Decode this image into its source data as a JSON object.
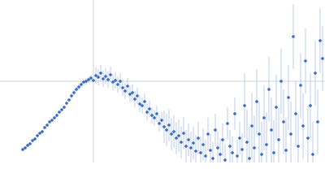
{
  "chart_data": {
    "type": "scatter",
    "x": [
      28,
      31,
      34,
      37,
      40,
      43,
      46,
      49,
      52,
      55,
      58,
      61,
      64,
      67,
      70,
      73,
      76,
      79,
      82,
      85,
      88,
      91,
      94,
      97,
      100,
      103,
      106,
      109,
      112,
      115,
      118,
      121,
      124,
      127,
      130,
      133,
      136,
      139,
      142,
      145,
      148,
      151,
      154,
      157,
      160,
      163,
      166,
      169,
      172,
      175,
      178,
      181,
      184,
      187,
      190,
      193,
      196,
      199,
      202,
      205,
      208,
      211,
      214,
      217,
      220,
      223,
      226,
      229,
      232,
      235,
      238,
      241,
      244,
      247,
      250,
      253,
      256,
      259,
      262,
      265,
      268,
      271,
      274,
      277,
      280,
      283,
      286,
      289,
      292,
      295,
      298,
      301,
      304,
      307,
      310,
      313,
      316,
      319,
      322,
      325,
      328,
      331,
      334,
      337,
      340,
      343,
      346,
      349,
      352,
      355,
      358,
      361,
      364,
      367,
      370,
      373,
      376,
      379,
      382,
      385,
      388,
      391,
      394,
      397
    ],
    "values": [
      16,
      18,
      21,
      23,
      27,
      29,
      33,
      36,
      38,
      43,
      46,
      50,
      52,
      55,
      58,
      62,
      65,
      68,
      73,
      77,
      82,
      86,
      90,
      93,
      96,
      99,
      100,
      102,
      104,
      101,
      107,
      105,
      110,
      103,
      106,
      102,
      108,
      99,
      101,
      96,
      100,
      92,
      88,
      94,
      84,
      86,
      78,
      82,
      72,
      70,
      75,
      62,
      66,
      58,
      55,
      60,
      48,
      52,
      44,
      40,
      46,
      35,
      38,
      30,
      33,
      25,
      36,
      20,
      28,
      18,
      24,
      14,
      30,
      12,
      22,
      8,
      35,
      15,
      5,
      40,
      18,
      10,
      28,
      3,
      48,
      20,
      12,
      60,
      8,
      30,
      16,
      70,
      25,
      5,
      45,
      18,
      75,
      35,
      10,
      55,
      22,
      90,
      40,
      12,
      68,
      28,
      100,
      50,
      15,
      80,
      35,
      155,
      60,
      20,
      95,
      45,
      125,
      30,
      70,
      10,
      110,
      50,
      150,
      128
    ],
    "errors": [
      2,
      2,
      2,
      2,
      2,
      2,
      2,
      2,
      2,
      2,
      2,
      2,
      2,
      2,
      2,
      2,
      2,
      2,
      2,
      2,
      4,
      4,
      4,
      4,
      4,
      4,
      4,
      4,
      4,
      4,
      10,
      10,
      10,
      10,
      10,
      10,
      10,
      10,
      10,
      10,
      10,
      10,
      10,
      10,
      10,
      10,
      10,
      10,
      10,
      10,
      10,
      10,
      10,
      10,
      10,
      10,
      10,
      10,
      20,
      20,
      20,
      20,
      20,
      20,
      20,
      20,
      20,
      20,
      20,
      20,
      20,
      20,
      20,
      20,
      20,
      20,
      20,
      20,
      20,
      20,
      20,
      20,
      20,
      20,
      20,
      20,
      20,
      20,
      20,
      20,
      20,
      40,
      40,
      40,
      40,
      40,
      40,
      40,
      40,
      40,
      40,
      40,
      40,
      40,
      40,
      40,
      40,
      40,
      40,
      40,
      40,
      40,
      40,
      40,
      40,
      40,
      40,
      40,
      40,
      40,
      40,
      40,
      40,
      40
    ],
    "color": "#3a6bbf",
    "error_color": "#bccbe9",
    "xlim": [
      0,
      400
    ],
    "ylim": [
      0,
      200
    ],
    "xticks": [
      115
    ],
    "yticks": [
      100
    ],
    "grid": true
  }
}
